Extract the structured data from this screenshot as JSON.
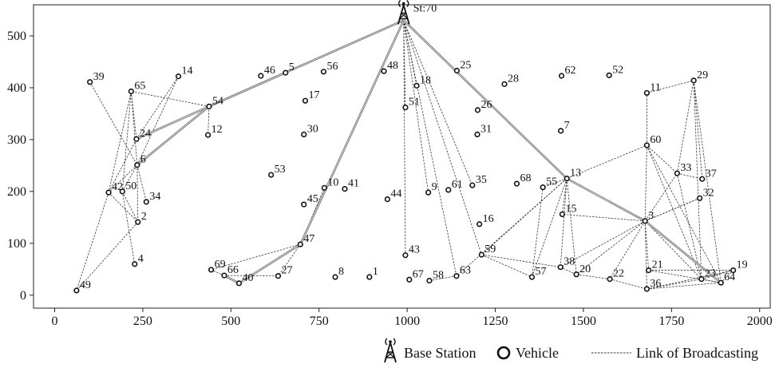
{
  "chart_data": {
    "type": "scatter",
    "xlim": [
      -60,
      2030
    ],
    "ylim": [
      -25,
      560
    ],
    "xticks": [
      0,
      250,
      500,
      750,
      1000,
      1250,
      1500,
      1750,
      2000
    ],
    "yticks": [
      0,
      100,
      200,
      300,
      400,
      500
    ],
    "grid": false,
    "legend_position": "bottom-right",
    "base_station": {
      "label": "St:70",
      "x": 990,
      "y": 530
    },
    "vehicles": [
      {
        "id": "1",
        "x": 893,
        "y": 35
      },
      {
        "id": "2",
        "x": 236,
        "y": 141
      },
      {
        "id": "3",
        "x": 1675,
        "y": 143
      },
      {
        "id": "4",
        "x": 227,
        "y": 60
      },
      {
        "id": "5",
        "x": 655,
        "y": 429
      },
      {
        "id": "6",
        "x": 234,
        "y": 251
      },
      {
        "id": "7",
        "x": 1436,
        "y": 317
      },
      {
        "id": "8",
        "x": 796,
        "y": 35
      },
      {
        "id": "9",
        "x": 1060,
        "y": 198
      },
      {
        "id": "10",
        "x": 765,
        "y": 207
      },
      {
        "id": "11",
        "x": 1680,
        "y": 390
      },
      {
        "id": "12",
        "x": 435,
        "y": 309
      },
      {
        "id": "13",
        "x": 1453,
        "y": 225
      },
      {
        "id": "14",
        "x": 351,
        "y": 422
      },
      {
        "id": "15",
        "x": 1440,
        "y": 156
      },
      {
        "id": "16",
        "x": 1205,
        "y": 137
      },
      {
        "id": "17",
        "x": 711,
        "y": 375
      },
      {
        "id": "18",
        "x": 1027,
        "y": 404
      },
      {
        "id": "19",
        "x": 1925,
        "y": 48
      },
      {
        "id": "20",
        "x": 1480,
        "y": 40
      },
      {
        "id": "21",
        "x": 1685,
        "y": 48
      },
      {
        "id": "22",
        "x": 1575,
        "y": 31
      },
      {
        "id": "23",
        "x": 1835,
        "y": 31
      },
      {
        "id": "24",
        "x": 232,
        "y": 301
      },
      {
        "id": "25",
        "x": 1141,
        "y": 433
      },
      {
        "id": "26",
        "x": 1200,
        "y": 357
      },
      {
        "id": "27",
        "x": 634,
        "y": 37
      },
      {
        "id": "28",
        "x": 1276,
        "y": 407
      },
      {
        "id": "29",
        "x": 1813,
        "y": 414
      },
      {
        "id": "30",
        "x": 707,
        "y": 310
      },
      {
        "id": "31",
        "x": 1199,
        "y": 310
      },
      {
        "id": "32",
        "x": 1830,
        "y": 187
      },
      {
        "id": "33",
        "x": 1766,
        "y": 235
      },
      {
        "id": "34",
        "x": 260,
        "y": 180
      },
      {
        "id": "35",
        "x": 1185,
        "y": 212
      },
      {
        "id": "36",
        "x": 1680,
        "y": 12
      },
      {
        "id": "37",
        "x": 1837,
        "y": 224
      },
      {
        "id": "38",
        "x": 1435,
        "y": 54
      },
      {
        "id": "39",
        "x": 100,
        "y": 411
      },
      {
        "id": "40",
        "x": 523,
        "y": 23
      },
      {
        "id": "41",
        "x": 823,
        "y": 205
      },
      {
        "id": "42",
        "x": 153,
        "y": 198
      },
      {
        "id": "43",
        "x": 995,
        "y": 77
      },
      {
        "id": "44",
        "x": 944,
        "y": 185
      },
      {
        "id": "45",
        "x": 707,
        "y": 175
      },
      {
        "id": "46",
        "x": 585,
        "y": 423
      },
      {
        "id": "47",
        "x": 697,
        "y": 98
      },
      {
        "id": "48",
        "x": 934,
        "y": 432
      },
      {
        "id": "49",
        "x": 62,
        "y": 9
      },
      {
        "id": "50",
        "x": 192,
        "y": 200
      },
      {
        "id": "51",
        "x": 995,
        "y": 362
      },
      {
        "id": "52",
        "x": 1573,
        "y": 424
      },
      {
        "id": "53",
        "x": 614,
        "y": 232
      },
      {
        "id": "54",
        "x": 438,
        "y": 364
      },
      {
        "id": "55",
        "x": 1385,
        "y": 208
      },
      {
        "id": "56",
        "x": 763,
        "y": 431
      },
      {
        "id": "57",
        "x": 1354,
        "y": 35
      },
      {
        "id": "58",
        "x": 1063,
        "y": 28
      },
      {
        "id": "59",
        "x": 1211,
        "y": 78
      },
      {
        "id": "60",
        "x": 1680,
        "y": 289
      },
      {
        "id": "61",
        "x": 1117,
        "y": 203
      },
      {
        "id": "62",
        "x": 1438,
        "y": 423
      },
      {
        "id": "63",
        "x": 1140,
        "y": 37
      },
      {
        "id": "64",
        "x": 1890,
        "y": 24
      },
      {
        "id": "65",
        "x": 217,
        "y": 393
      },
      {
        "id": "66",
        "x": 481,
        "y": 38
      },
      {
        "id": "67",
        "x": 1006,
        "y": 30
      },
      {
        "id": "68",
        "x": 1311,
        "y": 215
      },
      {
        "id": "69",
        "x": 444,
        "y": 49
      }
    ],
    "trunk_links": [
      [
        "St:70",
        "54"
      ],
      [
        "54",
        "6"
      ],
      [
        "54",
        "24"
      ],
      [
        "54",
        "5"
      ],
      [
        "St:70",
        "47"
      ],
      [
        "47",
        "40"
      ],
      [
        "40",
        "66"
      ],
      [
        "St:70",
        "13"
      ],
      [
        "13",
        "3"
      ],
      [
        "3",
        "64"
      ]
    ],
    "broadcast_links": [
      [
        "St:70",
        "51"
      ],
      [
        "St:70",
        "18"
      ],
      [
        "St:70",
        "9"
      ],
      [
        "St:70",
        "63"
      ],
      [
        "St:70",
        "35"
      ],
      [
        "St:70",
        "59"
      ],
      [
        "St:70",
        "43"
      ],
      [
        "54",
        "65"
      ],
      [
        "54",
        "12"
      ],
      [
        "65",
        "6"
      ],
      [
        "65",
        "24"
      ],
      [
        "65",
        "50"
      ],
      [
        "65",
        "42"
      ],
      [
        "39",
        "6"
      ],
      [
        "14",
        "6"
      ],
      [
        "14",
        "24"
      ],
      [
        "6",
        "42"
      ],
      [
        "6",
        "50"
      ],
      [
        "6",
        "34"
      ],
      [
        "6",
        "2"
      ],
      [
        "24",
        "42"
      ],
      [
        "50",
        "2"
      ],
      [
        "50",
        "4"
      ],
      [
        "42",
        "2"
      ],
      [
        "2",
        "49"
      ],
      [
        "42",
        "49"
      ],
      [
        "47",
        "69"
      ],
      [
        "47",
        "27"
      ],
      [
        "66",
        "69"
      ],
      [
        "66",
        "27"
      ],
      [
        "47",
        "10"
      ],
      [
        "13",
        "60"
      ],
      [
        "13",
        "55"
      ],
      [
        "13",
        "15"
      ],
      [
        "13",
        "38"
      ],
      [
        "13",
        "20"
      ],
      [
        "13",
        "57"
      ],
      [
        "13",
        "59"
      ],
      [
        "13",
        "63"
      ],
      [
        "60",
        "11"
      ],
      [
        "60",
        "33"
      ],
      [
        "60",
        "3"
      ],
      [
        "60",
        "64"
      ],
      [
        "60",
        "23"
      ],
      [
        "11",
        "29"
      ],
      [
        "29",
        "33"
      ],
      [
        "29",
        "37"
      ],
      [
        "29",
        "23"
      ],
      [
        "29",
        "64"
      ],
      [
        "3",
        "20"
      ],
      [
        "3",
        "22"
      ],
      [
        "3",
        "36"
      ],
      [
        "3",
        "23"
      ],
      [
        "3",
        "33"
      ],
      [
        "3",
        "21"
      ],
      [
        "3",
        "32"
      ],
      [
        "3",
        "15"
      ],
      [
        "3",
        "38"
      ],
      [
        "33",
        "37"
      ],
      [
        "33",
        "23"
      ],
      [
        "32",
        "3"
      ],
      [
        "21",
        "19"
      ],
      [
        "21",
        "64"
      ],
      [
        "36",
        "23"
      ],
      [
        "36",
        "19"
      ],
      [
        "36",
        "64"
      ],
      [
        "23",
        "64"
      ],
      [
        "23",
        "19"
      ],
      [
        "19",
        "64"
      ],
      [
        "59",
        "57"
      ],
      [
        "59",
        "38"
      ],
      [
        "57",
        "55"
      ],
      [
        "63",
        "58"
      ],
      [
        "20",
        "22"
      ],
      [
        "20",
        "38"
      ],
      [
        "22",
        "36"
      ]
    ],
    "legend": [
      "Base Station",
      "Vehicle",
      "Link of Broadcasting"
    ]
  }
}
